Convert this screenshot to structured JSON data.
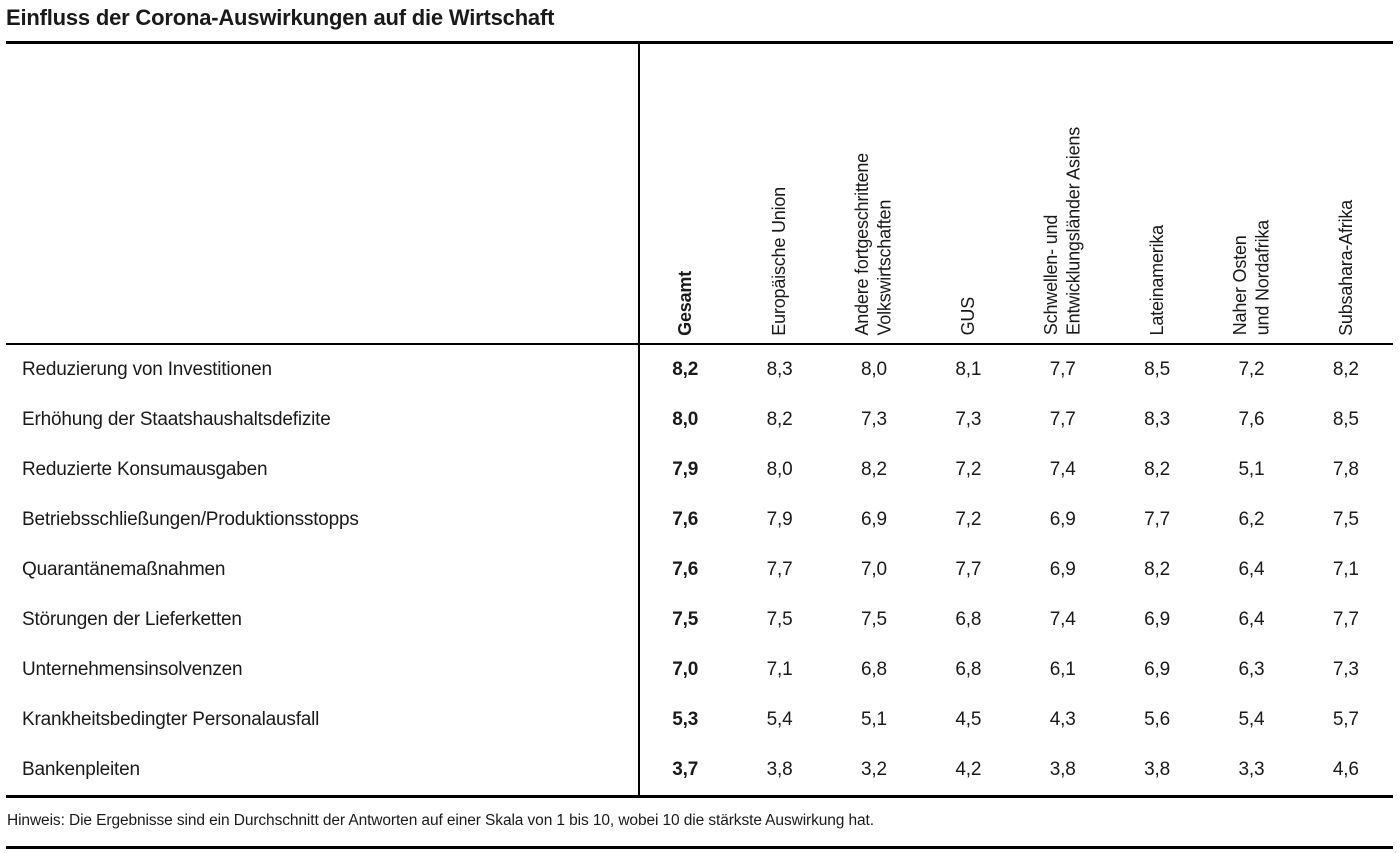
{
  "title": "Einfluss der Corona-Auswirkungen auf die Wirtschaft",
  "note": "Hinweis: Die Ergebnisse sind ein Durchschnitt der Antworten auf einer Skala von 1 bis 10, wobei 10 die stärkste Auswirkung hat.",
  "colors": {
    "text": "#1a1a1a",
    "rule": "#000000",
    "background": "#ffffff"
  },
  "chart_data": {
    "type": "table",
    "title": "Einfluss der Corona-Auswirkungen auf die Wirtschaft",
    "value_scale": [
      1,
      10
    ],
    "scale_note": "Durchschnitt der Antworten auf einer Skala von 1 bis 10, wobei 10 die stärkste Auswirkung hat",
    "columns": [
      "Gesamt",
      "Europäische Union",
      "Andere fortgeschrittene\nVolkswirtschaften",
      "GUS",
      "Schwellen- und\nEntwicklungsländer Asiens",
      "Lateinamerika",
      "Naher Osten\nund Nordafrika",
      "Subsahara-Afrika"
    ],
    "rows": [
      {
        "label": "Reduzierung von Investitionen",
        "values": [
          "8,2",
          "8,3",
          "8,0",
          "8,1",
          "7,7",
          "8,5",
          "7,2",
          "8,2"
        ]
      },
      {
        "label": "Erhöhung der Staatshaushaltsdefizite",
        "values": [
          "8,0",
          "8,2",
          "7,3",
          "7,3",
          "7,7",
          "8,3",
          "7,6",
          "8,5"
        ]
      },
      {
        "label": "Reduzierte Konsumausgaben",
        "values": [
          "7,9",
          "8,0",
          "8,2",
          "7,2",
          "7,4",
          "8,2",
          "5,1",
          "7,8"
        ]
      },
      {
        "label": "Betriebsschließungen/Produktionsstopps",
        "values": [
          "7,6",
          "7,9",
          "6,9",
          "7,2",
          "6,9",
          "7,7",
          "6,2",
          "7,5"
        ]
      },
      {
        "label": "Quarantänemaßnahmen",
        "values": [
          "7,6",
          "7,7",
          "7,0",
          "7,7",
          "6,9",
          "8,2",
          "6,4",
          "7,1"
        ]
      },
      {
        "label": "Störungen der Lieferketten",
        "values": [
          "7,5",
          "7,5",
          "7,5",
          "6,8",
          "7,4",
          "6,9",
          "6,4",
          "7,7"
        ]
      },
      {
        "label": "Unternehmensinsolvenzen",
        "values": [
          "7,0",
          "7,1",
          "6,8",
          "6,8",
          "6,1",
          "6,9",
          "6,3",
          "7,3"
        ]
      },
      {
        "label": "Krankheitsbedingter Personalausfall",
        "values": [
          "5,3",
          "5,4",
          "5,1",
          "4,5",
          "4,3",
          "5,6",
          "5,4",
          "5,7"
        ]
      },
      {
        "label": "Bankenpleiten",
        "values": [
          "3,7",
          "3,8",
          "3,2",
          "4,2",
          "3,8",
          "3,8",
          "3,3",
          "4,6"
        ]
      }
    ]
  }
}
